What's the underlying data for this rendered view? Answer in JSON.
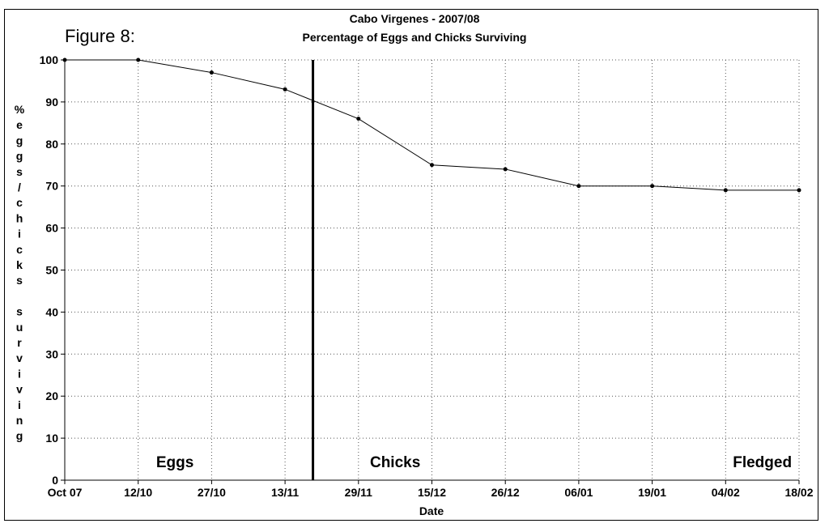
{
  "figure_label": "Figure 8:",
  "chart_data": {
    "type": "line",
    "title": "Cabo Virgenes - 2007/08",
    "subtitle": "Percentage of Eggs and Chicks Surviving",
    "xlabel": "Date",
    "ylabel_chars": [
      "%",
      "e",
      "g",
      "g",
      "s",
      "/",
      "c",
      "h",
      "i",
      "c",
      "k",
      "s",
      "",
      "s",
      "u",
      "r",
      "v",
      "i",
      "v",
      "i",
      "n",
      "g"
    ],
    "ylim": [
      0,
      100
    ],
    "yticks": [
      0,
      10,
      20,
      30,
      40,
      50,
      60,
      70,
      80,
      90,
      100
    ],
    "grid": true,
    "categories": [
      "Oct 07",
      "12/10",
      "27/10",
      "13/11",
      "29/11",
      "15/12",
      "26/12",
      "06/01",
      "19/01",
      "04/02",
      "18/02"
    ],
    "series": [
      {
        "values": [
          100,
          100,
          97,
          93,
          86,
          75,
          74,
          70,
          70,
          69,
          69
        ],
        "color": "#000000"
      }
    ],
    "divider_between": [
      3,
      4
    ],
    "divider_fraction": 0.38,
    "regions": [
      {
        "label": "Eggs",
        "at_index": 1.5
      },
      {
        "label": "Chicks",
        "at_index": 4.5
      },
      {
        "label": "Fledged",
        "at_index": 9.5
      }
    ]
  }
}
